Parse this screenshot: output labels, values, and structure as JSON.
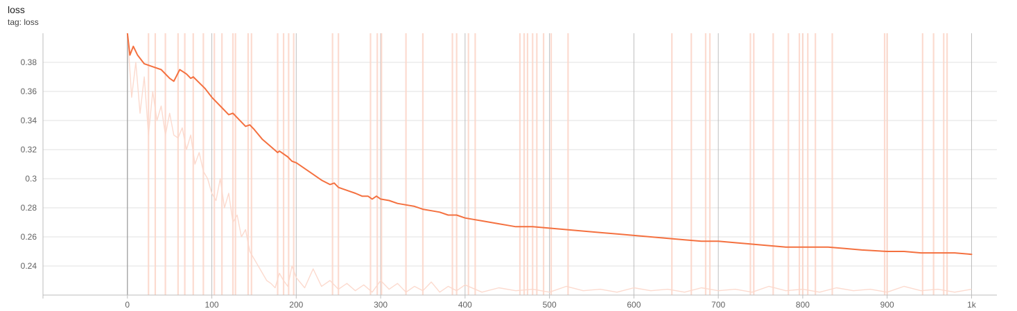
{
  "header": {
    "title": "loss",
    "tag_line": "tag: loss"
  },
  "colors": {
    "smoothed": "#f4703f",
    "raw": "#fcd8cb",
    "grid_h": "#e0e0e0",
    "grid_v": "#bdbdbd",
    "zero_line": "#9e9e9e",
    "axis": "#bdbdbd"
  },
  "chart_data": {
    "type": "line",
    "title": "loss",
    "subtitle": "tag: loss",
    "xlabel": "",
    "ylabel": "",
    "xlim": [
      -100,
      1030
    ],
    "ylim": [
      0.22,
      0.4
    ],
    "x_ticks": [
      0,
      100,
      200,
      300,
      400,
      500,
      600,
      700,
      800,
      900,
      1000
    ],
    "x_tick_labels": [
      "0",
      "100",
      "200",
      "300",
      "400",
      "500",
      "600",
      "700",
      "800",
      "900",
      "1k"
    ],
    "y_ticks": [
      0.24,
      0.26,
      0.28,
      0.3,
      0.32,
      0.34,
      0.36,
      0.38
    ],
    "y_tick_labels": [
      "0.24",
      "0.26",
      "0.28",
      "0.3",
      "0.32",
      "0.34",
      "0.36",
      "0.38"
    ],
    "grid": true,
    "series": [
      {
        "role": "smoothed",
        "x": [
          0,
          3,
          7,
          12,
          20,
          30,
          40,
          50,
          55,
          62,
          70,
          75,
          78,
          85,
          92,
          100,
          110,
          120,
          125,
          130,
          140,
          145,
          150,
          160,
          170,
          178,
          180,
          190,
          195,
          200,
          210,
          220,
          230,
          240,
          245,
          250,
          260,
          270,
          278,
          285,
          290,
          295,
          300,
          310,
          320,
          330,
          340,
          350,
          360,
          370,
          380,
          390,
          400,
          410,
          420,
          430,
          440,
          450,
          460,
          465,
          480,
          500,
          520,
          540,
          560,
          580,
          600,
          620,
          640,
          660,
          680,
          700,
          720,
          740,
          760,
          780,
          800,
          815,
          830,
          850,
          870,
          900,
          920,
          940,
          960,
          980,
          1000
        ],
        "y": [
          0.4,
          0.385,
          0.391,
          0.385,
          0.379,
          0.377,
          0.375,
          0.369,
          0.367,
          0.375,
          0.372,
          0.369,
          0.37,
          0.366,
          0.362,
          0.356,
          0.35,
          0.344,
          0.345,
          0.342,
          0.336,
          0.337,
          0.334,
          0.327,
          0.322,
          0.318,
          0.319,
          0.315,
          0.312,
          0.311,
          0.307,
          0.303,
          0.299,
          0.296,
          0.297,
          0.294,
          0.292,
          0.29,
          0.288,
          0.288,
          0.286,
          0.288,
          0.286,
          0.285,
          0.283,
          0.282,
          0.281,
          0.279,
          0.278,
          0.277,
          0.275,
          0.275,
          0.273,
          0.272,
          0.271,
          0.27,
          0.269,
          0.268,
          0.267,
          0.267,
          0.267,
          0.266,
          0.265,
          0.264,
          0.263,
          0.262,
          0.261,
          0.26,
          0.259,
          0.258,
          0.257,
          0.257,
          0.256,
          0.255,
          0.254,
          0.253,
          0.253,
          0.253,
          0.253,
          0.252,
          0.251,
          0.25,
          0.25,
          0.249,
          0.249,
          0.249,
          0.248
        ]
      },
      {
        "role": "raw",
        "x": [
          0,
          5,
          10,
          15,
          20,
          25,
          30,
          35,
          40,
          45,
          50,
          55,
          60,
          65,
          70,
          75,
          80,
          85,
          90,
          95,
          100,
          105,
          110,
          115,
          120,
          125,
          130,
          135,
          140,
          145,
          150,
          155,
          160,
          165,
          170,
          175,
          180,
          185,
          190,
          195,
          200,
          210,
          220,
          230,
          240,
          250,
          260,
          270,
          280,
          290,
          300,
          310,
          320,
          330,
          340,
          350,
          360,
          370,
          380,
          390,
          400,
          420,
          440,
          460,
          480,
          500,
          520,
          540,
          560,
          580,
          600,
          620,
          640,
          660,
          680,
          700,
          720,
          740,
          760,
          780,
          800,
          820,
          840,
          860,
          880,
          900,
          920,
          940,
          960,
          980,
          1000
        ],
        "y": [
          0.4,
          0.356,
          0.38,
          0.345,
          0.37,
          0.33,
          0.36,
          0.34,
          0.35,
          0.33,
          0.345,
          0.33,
          0.328,
          0.335,
          0.32,
          0.33,
          0.31,
          0.318,
          0.305,
          0.3,
          0.29,
          0.285,
          0.3,
          0.28,
          0.29,
          0.27,
          0.275,
          0.26,
          0.265,
          0.25,
          0.245,
          0.24,
          0.235,
          0.23,
          0.228,
          0.225,
          0.235,
          0.23,
          0.226,
          0.24,
          0.232,
          0.225,
          0.238,
          0.226,
          0.23,
          0.224,
          0.228,
          0.223,
          0.227,
          0.222,
          0.23,
          0.224,
          0.228,
          0.222,
          0.226,
          0.223,
          0.229,
          0.222,
          0.226,
          0.223,
          0.227,
          0.222,
          0.225,
          0.223,
          0.224,
          0.222,
          0.226,
          0.223,
          0.224,
          0.222,
          0.225,
          0.223,
          0.224,
          0.222,
          0.225,
          0.223,
          0.224,
          0.222,
          0.226,
          0.223,
          0.224,
          0.222,
          0.225,
          0.223,
          0.224,
          0.222,
          0.226,
          0.223,
          0.224,
          0.222,
          0.224
        ]
      }
    ],
    "spikes": {
      "role": "raw",
      "x": [
        25,
        33,
        45,
        60,
        68,
        78,
        90,
        103,
        112,
        125,
        128,
        143,
        147,
        178,
        185,
        191,
        197,
        243,
        250,
        288,
        296,
        301,
        330,
        350,
        385,
        390,
        404,
        412,
        465,
        470,
        474,
        480,
        485,
        493,
        502,
        522,
        645,
        668,
        685,
        690,
        738,
        742,
        765,
        783,
        796,
        800,
        806,
        815,
        835,
        897,
        900,
        942,
        955,
        967,
        971
      ]
    }
  }
}
